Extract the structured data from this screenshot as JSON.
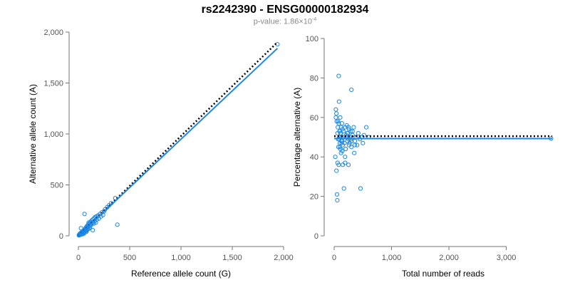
{
  "title": "rs2242390 - ENSG00000182934",
  "subtitle": {
    "prefix": "p-value: 1.86×10",
    "exponent": "-4"
  },
  "colors": {
    "points": "#1e88e5",
    "fit_line": "#1e88e5",
    "reference_line": "#000000"
  },
  "chart_data": [
    {
      "type": "scatter",
      "xlabel": "Reference allele count (G)",
      "ylabel": "Alternative allele count (A)",
      "xlim": [
        0,
        2000
      ],
      "ylim": [
        0,
        2000
      ],
      "xticks": [
        0,
        500,
        1000,
        1500,
        2000
      ],
      "xtick_labels": [
        "0",
        "500",
        "1,000",
        "1,500",
        "2,000"
      ],
      "yticks": [
        0,
        500,
        1000,
        1500,
        2000
      ],
      "ytick_labels": [
        "0",
        "500",
        "1,000",
        "1,500",
        "2,000"
      ],
      "fit_line": [
        [
          0,
          0
        ],
        [
          1940,
          1840
        ]
      ],
      "reference_line": [
        [
          0,
          0
        ],
        [
          1940,
          1900
        ]
      ],
      "x": [
        5,
        8,
        10,
        12,
        15,
        18,
        20,
        22,
        25,
        28,
        30,
        32,
        35,
        38,
        40,
        42,
        45,
        48,
        50,
        52,
        55,
        58,
        60,
        62,
        65,
        68,
        70,
        72,
        75,
        78,
        80,
        82,
        85,
        88,
        90,
        92,
        95,
        98,
        100,
        105,
        110,
        112,
        115,
        118,
        120,
        125,
        130,
        135,
        140,
        145,
        150,
        155,
        160,
        165,
        170,
        175,
        180,
        190,
        200,
        210,
        220,
        230,
        240,
        250,
        260,
        280,
        300,
        320,
        360,
        380,
        60,
        75,
        140,
        100,
        25,
        1940
      ],
      "y": [
        5,
        10,
        15,
        8,
        20,
        12,
        25,
        18,
        30,
        22,
        28,
        35,
        15,
        40,
        30,
        45,
        25,
        50,
        38,
        20,
        55,
        42,
        60,
        35,
        50,
        70,
        45,
        80,
        60,
        40,
        90,
        75,
        55,
        100,
        85,
        65,
        110,
        95,
        70,
        120,
        105,
        80,
        130,
        100,
        140,
        115,
        150,
        125,
        160,
        135,
        120,
        175,
        145,
        185,
        130,
        190,
        160,
        200,
        170,
        215,
        190,
        230,
        205,
        240,
        260,
        280,
        300,
        320,
        370,
        110,
        215,
        50,
        55,
        130,
        75,
        1880
      ]
    },
    {
      "type": "scatter",
      "xlabel": "Total number of reads",
      "ylabel": "Percentage alternative (A)",
      "xlim": [
        0,
        3800
      ],
      "ylim": [
        0,
        100
      ],
      "xticks": [
        0,
        1000,
        2000,
        3000
      ],
      "xtick_labels": [
        "0",
        "1,000",
        "2,000",
        "3,000"
      ],
      "yticks": [
        0,
        20,
        40,
        60,
        80,
        100
      ],
      "ytick_labels": [
        "0",
        "20",
        "40",
        "60",
        "80",
        "100"
      ],
      "fit_line": [
        [
          0,
          49.3
        ],
        [
          3800,
          49.3
        ]
      ],
      "reference_line": [
        [
          0,
          50.5
        ],
        [
          3800,
          50.5
        ]
      ],
      "x": [
        20,
        30,
        40,
        45,
        50,
        55,
        60,
        65,
        70,
        75,
        80,
        85,
        90,
        95,
        100,
        105,
        110,
        115,
        120,
        125,
        130,
        135,
        140,
        145,
        150,
        160,
        170,
        180,
        190,
        200,
        210,
        220,
        230,
        240,
        250,
        260,
        270,
        280,
        290,
        300,
        320,
        340,
        360,
        380,
        400,
        420,
        450,
        480,
        500,
        520,
        560,
        600,
        30,
        40,
        60,
        80,
        100,
        120,
        140,
        150,
        170,
        190,
        210,
        230,
        260,
        300,
        320,
        350,
        380,
        460,
        70,
        100,
        130,
        160,
        200,
        250,
        300,
        360,
        80,
        90,
        110,
        190,
        250,
        290,
        3780
      ],
      "y": [
        40,
        64,
        33,
        58,
        21,
        18,
        52,
        55,
        49,
        45,
        81,
        68,
        50,
        53,
        47,
        60,
        44,
        52,
        55,
        48,
        50,
        57,
        43,
        54,
        46,
        53,
        50,
        47,
        55,
        44,
        51,
        56,
        48,
        52,
        49,
        54,
        47,
        50,
        53,
        45,
        51,
        55,
        48,
        50,
        46,
        52,
        49,
        50,
        47,
        51,
        55,
        50,
        60,
        62,
        37,
        36,
        45,
        42,
        48,
        36,
        24,
        40,
        50,
        52,
        46,
        74,
        53,
        42,
        50,
        24,
        58,
        53,
        47,
        50,
        44,
        55,
        48,
        46,
        57,
        49,
        52,
        37,
        36,
        49,
        49.3
      ]
    }
  ]
}
